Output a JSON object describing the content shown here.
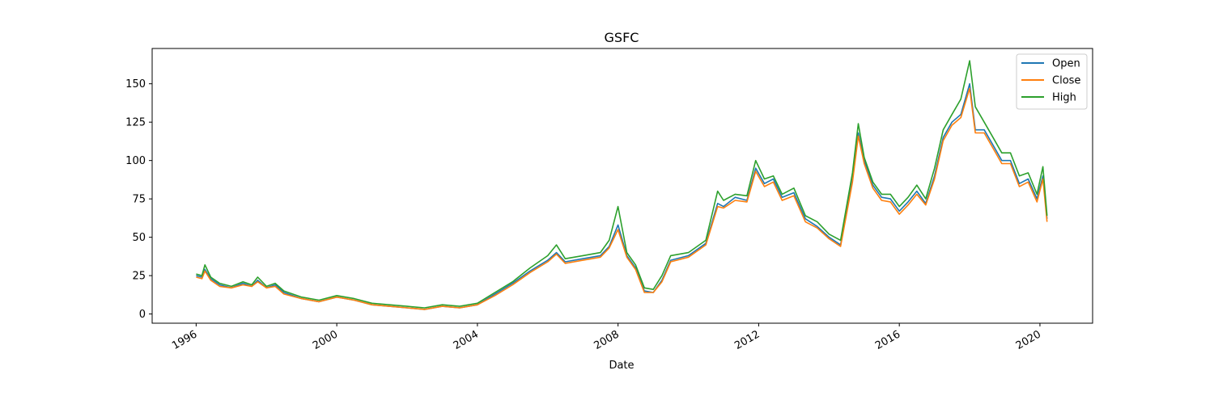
{
  "chart_data": {
    "type": "line",
    "title": "GSFC",
    "xlabel": "Date",
    "ylabel": "",
    "xlim": [
      "1994-10-01",
      "2021-07-01"
    ],
    "ylim": [
      -6,
      173
    ],
    "x_ticks": [
      "1996",
      "2000",
      "2004",
      "2008",
      "2012",
      "2016",
      "2020"
    ],
    "y_ticks": [
      0,
      25,
      50,
      75,
      100,
      125,
      150
    ],
    "legend_position": "top-right",
    "grid": false,
    "x": [
      "1996-01-01",
      "1996-03-01",
      "1996-04-01",
      "1996-06-01",
      "1996-09-01",
      "1997-01-01",
      "1997-05-01",
      "1997-08-01",
      "1997-10-01",
      "1998-01-01",
      "1998-04-01",
      "1998-07-01",
      "1999-01-01",
      "1999-07-01",
      "2000-01-01",
      "2000-07-01",
      "2001-01-01",
      "2001-07-01",
      "2002-01-01",
      "2002-07-01",
      "2003-01-01",
      "2003-07-01",
      "2004-01-01",
      "2004-07-01",
      "2005-01-01",
      "2005-07-01",
      "2006-01-01",
      "2006-04-01",
      "2006-07-01",
      "2007-01-01",
      "2007-07-01",
      "2007-10-01",
      "2008-01-01",
      "2008-04-01",
      "2008-07-01",
      "2008-10-01",
      "2009-01-01",
      "2009-04-01",
      "2009-07-01",
      "2010-01-01",
      "2010-07-01",
      "2010-11-01",
      "2011-01-01",
      "2011-05-01",
      "2011-09-01",
      "2011-12-01",
      "2012-03-01",
      "2012-06-01",
      "2012-09-01",
      "2013-01-01",
      "2013-05-01",
      "2013-09-01",
      "2014-01-01",
      "2014-05-01",
      "2014-09-01",
      "2014-11-01",
      "2015-01-01",
      "2015-04-01",
      "2015-07-01",
      "2015-10-01",
      "2016-01-01",
      "2016-04-01",
      "2016-07-01",
      "2016-10-01",
      "2017-01-01",
      "2017-04-01",
      "2017-07-01",
      "2017-10-01",
      "2018-01-01",
      "2018-03-01",
      "2018-06-01",
      "2018-09-01",
      "2018-12-01",
      "2019-03-01",
      "2019-06-01",
      "2019-09-01",
      "2019-12-01",
      "2020-02-01",
      "2020-03-15"
    ],
    "series": [
      {
        "name": "Open",
        "color": "#1f77b4",
        "values": [
          25,
          24,
          29,
          23,
          19,
          17,
          20,
          18,
          22,
          17,
          19,
          14,
          10,
          8,
          11,
          9,
          6,
          5,
          4,
          3,
          5,
          4,
          6,
          13,
          20,
          28,
          35,
          40,
          34,
          36,
          38,
          44,
          58,
          38,
          30,
          15,
          14,
          22,
          35,
          38,
          46,
          72,
          70,
          76,
          74,
          95,
          85,
          88,
          76,
          79,
          62,
          57,
          50,
          45,
          88,
          118,
          100,
          84,
          76,
          75,
          67,
          73,
          80,
          72,
          90,
          115,
          125,
          130,
          150,
          120,
          120,
          110,
          100,
          100,
          85,
          88,
          75,
          90,
          62
        ]
      },
      {
        "name": "Close",
        "color": "#ff7f0e",
        "values": [
          24,
          23,
          28,
          22,
          18,
          17,
          19,
          18,
          21,
          17,
          18,
          13,
          10,
          8,
          11,
          9,
          6,
          5,
          4,
          3,
          5,
          4,
          6,
          12,
          19,
          27,
          34,
          39,
          33,
          35,
          37,
          43,
          55,
          37,
          29,
          14,
          14,
          21,
          34,
          37,
          45,
          70,
          69,
          74,
          73,
          93,
          83,
          86,
          74,
          77,
          60,
          56,
          49,
          44,
          86,
          116,
          98,
          82,
          74,
          73,
          65,
          71,
          78,
          71,
          88,
          113,
          123,
          128,
          147,
          118,
          118,
          108,
          98,
          98,
          83,
          86,
          73,
          88,
          60
        ]
      },
      {
        "name": "High",
        "color": "#2ca02c",
        "values": [
          26,
          25,
          32,
          24,
          20,
          18,
          21,
          19,
          24,
          18,
          20,
          15,
          11,
          9,
          12,
          10,
          7,
          6,
          5,
          4,
          6,
          5,
          7,
          14,
          21,
          30,
          38,
          45,
          36,
          38,
          40,
          48,
          70,
          40,
          32,
          17,
          16,
          25,
          38,
          40,
          48,
          80,
          74,
          78,
          77,
          100,
          88,
          90,
          78,
          82,
          64,
          60,
          52,
          48,
          92,
          124,
          102,
          86,
          78,
          78,
          70,
          76,
          84,
          75,
          95,
          120,
          130,
          140,
          165,
          135,
          125,
          115,
          105,
          105,
          90,
          92,
          78,
          96,
          64
        ]
      }
    ]
  }
}
